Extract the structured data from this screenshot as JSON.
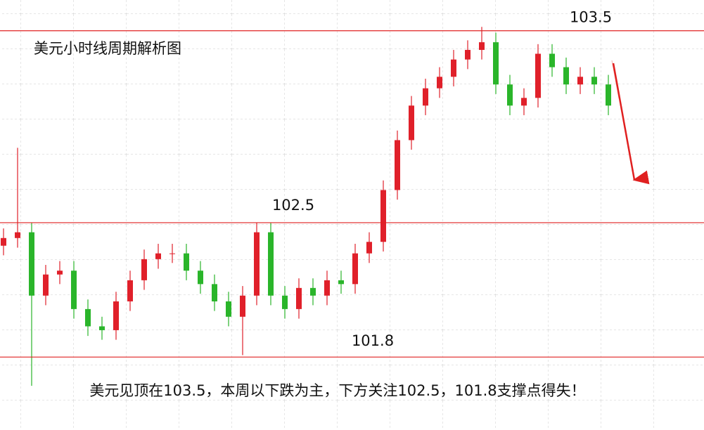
{
  "chart_data": {
    "type": "candlestick",
    "title": "美元小时线周期解析图",
    "footnote": "美元见顶在103.5，本周以下跌为主，下方关注102.5，101.8支撑点得失！",
    "levels": [
      103.5,
      102.5,
      101.8
    ],
    "level_color": "#e02020",
    "up_color": "#e0202a",
    "down_color": "#2ab52a",
    "grid": true,
    "ylim": [
      101.42,
      103.66
    ],
    "open": [
      102.38,
      102.42,
      102.45,
      102.12,
      102.23,
      102.25,
      102.05,
      101.96,
      101.94,
      102.09,
      102.2,
      102.31,
      102.34,
      102.34,
      102.25,
      102.18,
      102.09,
      102.01,
      102.12,
      102.45,
      102.12,
      102.05,
      102.16,
      102.12,
      102.2,
      102.18,
      102.34,
      102.4,
      102.67,
      102.93,
      103.11,
      103.2,
      103.26,
      103.35,
      103.4,
      103.44,
      103.22,
      103.11,
      103.15,
      103.38,
      103.31,
      103.22,
      103.26,
      103.22
    ],
    "high": [
      102.47,
      102.89,
      102.5,
      102.28,
      102.3,
      102.3,
      102.1,
      102.01,
      102.14,
      102.25,
      102.36,
      102.39,
      102.39,
      102.39,
      102.3,
      102.23,
      102.14,
      102.17,
      102.5,
      102.5,
      102.17,
      102.21,
      102.21,
      102.25,
      102.25,
      102.39,
      102.45,
      102.72,
      102.98,
      103.16,
      103.25,
      103.31,
      103.4,
      103.45,
      103.52,
      103.49,
      103.27,
      103.2,
      103.43,
      103.43,
      103.36,
      103.31,
      103.31,
      103.27
    ],
    "low": [
      102.33,
      102.37,
      101.65,
      102.07,
      102.18,
      102.0,
      101.91,
      101.89,
      101.89,
      102.04,
      102.15,
      102.26,
      102.29,
      102.2,
      102.13,
      102.04,
      101.96,
      101.81,
      102.07,
      102.07,
      102.0,
      102.0,
      102.07,
      102.07,
      102.13,
      102.13,
      102.29,
      102.35,
      102.62,
      102.88,
      103.06,
      103.15,
      103.21,
      103.3,
      103.35,
      103.17,
      103.06,
      103.06,
      103.1,
      103.26,
      103.17,
      103.17,
      103.17,
      103.06
    ],
    "close": [
      102.42,
      102.45,
      102.12,
      102.23,
      102.25,
      102.05,
      101.96,
      101.94,
      102.09,
      102.2,
      102.31,
      102.34,
      102.34,
      102.25,
      102.18,
      102.09,
      102.01,
      102.12,
      102.45,
      102.12,
      102.05,
      102.16,
      102.12,
      102.2,
      102.18,
      102.34,
      102.4,
      102.67,
      102.93,
      103.11,
      103.2,
      103.26,
      103.35,
      103.4,
      103.44,
      103.22,
      103.11,
      103.15,
      103.38,
      103.31,
      103.22,
      103.26,
      103.22,
      103.11
    ]
  }
}
